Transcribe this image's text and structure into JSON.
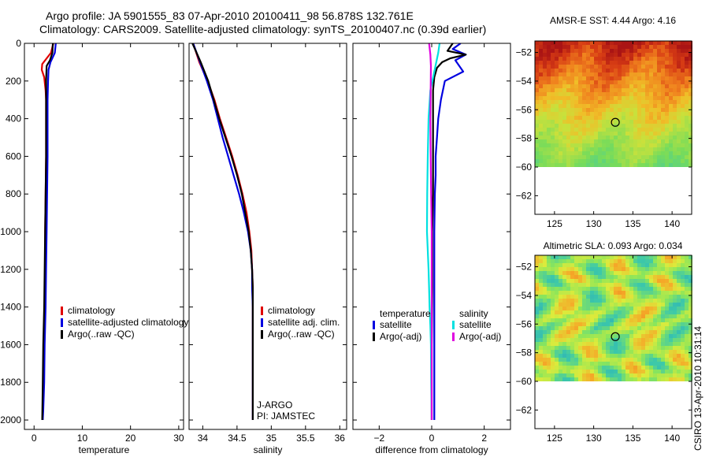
{
  "header": {
    "line1": "Argo profile: JA 5901555_83 07-Apr-2010 20100411_98 56.878S 132.761E",
    "line2": "Climatology: CARS2009. Satellite-adjusted climatology: synTS_20100407.nc (0.39d earlier)"
  },
  "credit": "CSIRO 13-Apr-2010 10:31:14",
  "chart_data": [
    {
      "id": "temperature",
      "type": "line",
      "xlabel": "temperature",
      "ylabel": "",
      "xlim": [
        -2,
        31
      ],
      "ylim": [
        2050,
        0
      ],
      "xticks": [
        0,
        10,
        20,
        30
      ],
      "yticks": [
        0,
        200,
        400,
        600,
        800,
        1000,
        1200,
        1400,
        1600,
        1800,
        2000
      ],
      "legend": [
        "climatology",
        "satellite-adjusted climatology",
        "Argo(..raw -QC)"
      ],
      "series": [
        {
          "name": "climatology",
          "color": "#e00000",
          "x": [
            4.0,
            3.5,
            1.7,
            1.6,
            2.1,
            2.4,
            2.5,
            2.5,
            2.5,
            2.4,
            2.3,
            2.3,
            2.2,
            2.1,
            2.0,
            1.9,
            1.8,
            1.8
          ],
          "y": [
            0,
            50,
            110,
            140,
            180,
            250,
            300,
            400,
            600,
            800,
            1000,
            1200,
            1400,
            1500,
            1600,
            1800,
            1950,
            2000
          ]
        },
        {
          "name": "satellite-adjusted climatology",
          "color": "#0000e0",
          "x": [
            4.5,
            4.3,
            3.4,
            3.0,
            2.9,
            2.8,
            2.8,
            2.8,
            2.7,
            2.6,
            2.5,
            2.4,
            2.2,
            2.1,
            1.9,
            1.8
          ],
          "y": [
            0,
            50,
            100,
            140,
            200,
            300,
            400,
            600,
            800,
            1000,
            1200,
            1400,
            1600,
            1800,
            1950,
            2000
          ]
        },
        {
          "name": "Argo(..raw -QC)",
          "color": "#000000",
          "x": [
            3.9,
            3.8,
            3.3,
            2.6,
            2.5,
            2.5,
            2.5,
            2.4,
            2.3,
            2.2,
            2.1,
            1.9,
            1.8,
            1.7
          ],
          "y": [
            0,
            50,
            90,
            120,
            200,
            400,
            600,
            800,
            1000,
            1200,
            1400,
            1600,
            1800,
            2000
          ]
        }
      ]
    },
    {
      "id": "salinity",
      "type": "line",
      "xlabel": "salinity",
      "ylabel": "",
      "xlim": [
        33.8,
        36.1
      ],
      "ylim": [
        2050,
        0
      ],
      "xticks": [
        34,
        34.5,
        35,
        35.5,
        36
      ],
      "yticks": [
        0,
        200,
        400,
        600,
        800,
        1000,
        1200,
        1400,
        1600,
        1800,
        2000
      ],
      "legend": [
        "climatology",
        "satellite adj. clim.",
        "Argo(..raw -QC)"
      ],
      "annotation": [
        "J-ARGO",
        "PI: JAMSTEC"
      ],
      "series": [
        {
          "name": "climatology",
          "color": "#e00000",
          "x": [
            33.86,
            33.95,
            34.07,
            34.17,
            34.25,
            34.34,
            34.43,
            34.51,
            34.58,
            34.64,
            34.68,
            34.71,
            34.72,
            34.73,
            34.73,
            34.73,
            34.73,
            34.73
          ],
          "y": [
            0,
            100,
            200,
            300,
            400,
            500,
            600,
            700,
            800,
            900,
            1000,
            1100,
            1200,
            1300,
            1400,
            1600,
            1800,
            2000
          ]
        },
        {
          "name": "satellite adj. clim.",
          "color": "#0000e0",
          "x": [
            33.86,
            33.96,
            34.06,
            34.15,
            34.22,
            34.29,
            34.37,
            34.45,
            34.53,
            34.6,
            34.66,
            34.7,
            34.72,
            34.72,
            34.73,
            34.73,
            34.73
          ],
          "y": [
            0,
            100,
            200,
            300,
            400,
            500,
            600,
            700,
            800,
            900,
            1000,
            1100,
            1200,
            1300,
            1400,
            1700,
            2000
          ]
        },
        {
          "name": "Argo(..raw -QC)",
          "color": "#000000",
          "x": [
            33.85,
            33.97,
            34.08,
            34.16,
            34.24,
            34.33,
            34.42,
            34.5,
            34.57,
            34.62,
            34.67,
            34.7,
            34.72,
            34.73,
            34.73,
            34.73
          ],
          "y": [
            0,
            100,
            200,
            300,
            400,
            500,
            600,
            700,
            800,
            900,
            1000,
            1100,
            1200,
            1300,
            1600,
            2000
          ]
        }
      ]
    },
    {
      "id": "difference",
      "type": "line",
      "xlabel": "difference from climatology",
      "ylabel": "",
      "xlim": [
        -3.0,
        3.0
      ],
      "ylim": [
        2050,
        0
      ],
      "xticks": [
        -2,
        0,
        2
      ],
      "yticks": [
        0,
        200,
        400,
        600,
        800,
        1000,
        1200,
        1400,
        1600,
        1800,
        2000
      ],
      "legend_headers": [
        "temperature",
        "salinity"
      ],
      "legend": [
        "satellite",
        "Argo(-adj)",
        "satellite",
        "Argo(-adj)"
      ],
      "series": [
        {
          "name": "temperature satellite",
          "color": "#0000e0",
          "x": [
            1.1,
            0.8,
            1.3,
            0.9,
            1.2,
            0.5,
            0.35,
            0.25,
            0.2,
            0.15,
            0.15,
            0.12,
            0.1,
            0.1,
            0.1,
            0.1,
            0.1,
            0.1
          ],
          "y": [
            0,
            30,
            60,
            90,
            150,
            200,
            300,
            400,
            500,
            600,
            700,
            800,
            1000,
            1200,
            1400,
            1600,
            1800,
            2000
          ]
        },
        {
          "name": "temperature Argo(-adj)",
          "color": "#000000",
          "x": [
            0.8,
            0.6,
            1.3,
            0.7,
            0.4,
            0.2,
            0.1,
            0.05,
            0.05,
            0.05,
            0.05,
            0.02,
            0.02,
            0.0,
            0.0,
            0.0
          ],
          "y": [
            0,
            40,
            60,
            80,
            100,
            130,
            180,
            250,
            400,
            600,
            800,
            1000,
            1300,
            1600,
            1800,
            2000
          ]
        },
        {
          "name": "salinity satellite",
          "color": "#00e0e0",
          "x": [
            0.3,
            0.25,
            0.1,
            -0.05,
            -0.12,
            -0.15,
            -0.17,
            -0.18,
            -0.15,
            -0.12,
            -0.1,
            -0.08,
            -0.05,
            -0.03,
            -0.02,
            0.0
          ],
          "y": [
            0,
            50,
            150,
            250,
            400,
            600,
            800,
            1000,
            1100,
            1200,
            1300,
            1400,
            1500,
            1600,
            1800,
            2000
          ]
        },
        {
          "name": "salinity Argo(-adj)",
          "color": "#e000e0",
          "x": [
            -0.1,
            -0.05,
            -0.03,
            -0.04,
            -0.05,
            -0.04,
            -0.02,
            0.0,
            0.0,
            0.0
          ],
          "y": [
            0,
            60,
            120,
            250,
            400,
            600,
            800,
            1000,
            1500,
            2000
          ]
        }
      ]
    },
    {
      "id": "sst-map",
      "type": "heatmap",
      "title": "AMSR-E SST: 4.44 Argo: 4.16",
      "xlim": [
        122.5,
        142.5
      ],
      "ylim": [
        -63.3,
        -51.2
      ],
      "xticks": [
        125,
        130,
        135,
        140
      ],
      "yticks": [
        -52,
        -54,
        -56,
        -58,
        -60,
        -62
      ],
      "data_bottom_lat": -60,
      "marker": {
        "lon": 132.761,
        "lat": -56.878
      }
    },
    {
      "id": "sla-map",
      "type": "heatmap",
      "title": "Altimetric SLA: 0.093 Argo: 0.034",
      "xlim": [
        122.5,
        142.5
      ],
      "ylim": [
        -63.3,
        -51.2
      ],
      "xticks": [
        125,
        130,
        135,
        140
      ],
      "yticks": [
        -52,
        -54,
        -56,
        -58,
        -60,
        -62
      ],
      "data_bottom_lat": -60,
      "marker": {
        "lon": 132.761,
        "lat": -56.878
      }
    }
  ]
}
